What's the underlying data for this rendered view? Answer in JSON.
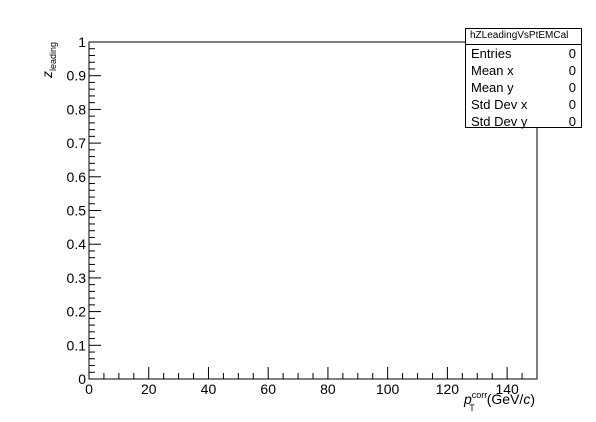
{
  "chart_data": {
    "type": "heatmap",
    "title": "",
    "xlabel": {
      "base": "p",
      "sub": "T",
      "sup": "corr",
      "unit_pre": "(GeV/",
      "unit_var": "c",
      "unit_post": ")"
    },
    "ylabel": {
      "base": "z",
      "sub": "leading"
    },
    "xlim": [
      0,
      150
    ],
    "ylim": [
      0,
      1
    ],
    "x_ticks": [
      "0",
      "20",
      "40",
      "60",
      "80",
      "100",
      "120",
      "140"
    ],
    "y_ticks": [
      "0",
      "0.1",
      "0.2",
      "0.3",
      "0.4",
      "0.5",
      "0.6",
      "0.7",
      "0.8",
      "0.9",
      "1"
    ],
    "grid": false,
    "values": [],
    "legend": "none"
  },
  "stats": {
    "title": "hZLeadingVsPtEMCal",
    "rows": [
      {
        "name": "Entries",
        "value": "0"
      },
      {
        "name": "Mean x",
        "value": "0"
      },
      {
        "name": "Mean y",
        "value": "0"
      },
      {
        "name": "Std Dev x",
        "value": "0"
      },
      {
        "name": "Std Dev y",
        "value": "0"
      }
    ]
  }
}
